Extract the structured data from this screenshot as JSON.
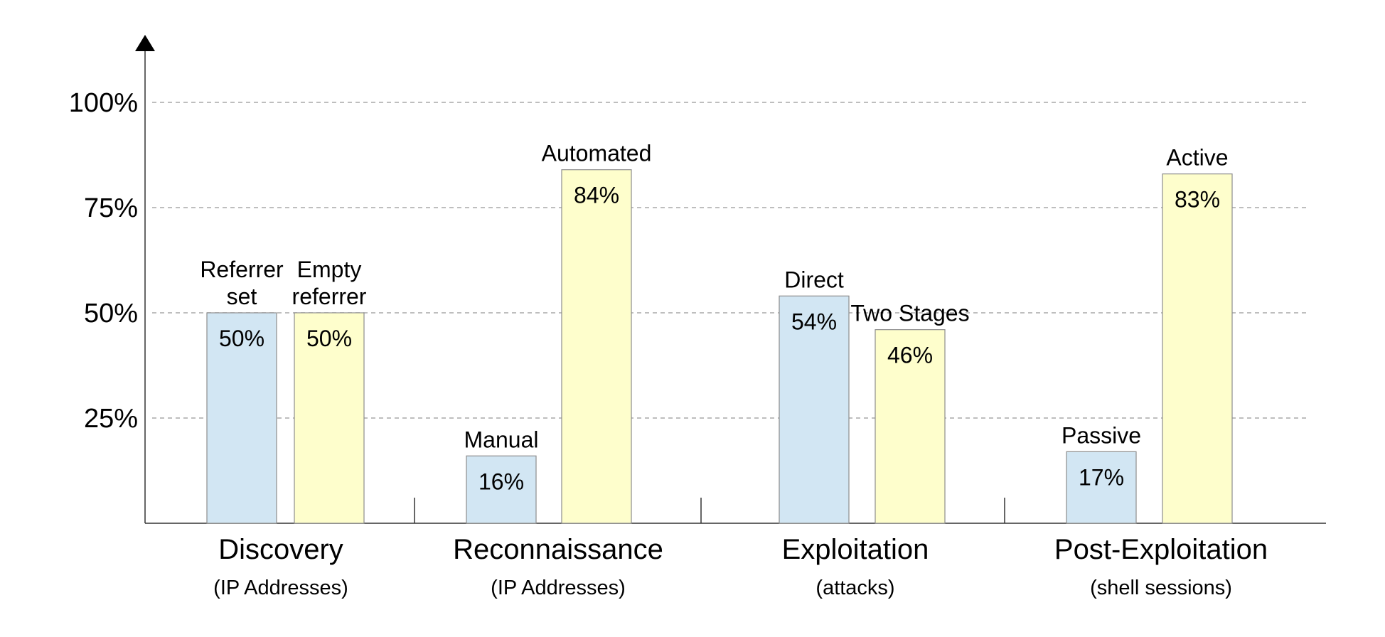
{
  "chart_data": {
    "type": "bar",
    "y_axis": {
      "ticks": [
        25,
        50,
        75,
        100
      ],
      "tick_labels": [
        "25%",
        "50%",
        "75%",
        "100%"
      ],
      "ylim": [
        0,
        100
      ],
      "grid": true
    },
    "colors": {
      "first_bar": "#d2e6f3",
      "second_bar": "#fefecc",
      "bar_stroke": "#8c8c8c",
      "gridline": "#a8a8a8",
      "axis": "#333333"
    },
    "groups": [
      {
        "name": "Discovery",
        "subtitle": "(IP Addresses)",
        "bars": [
          {
            "label": [
              "Referrer",
              "set"
            ],
            "value": 50,
            "value_label": "50%"
          },
          {
            "label": [
              "Empty",
              "referrer"
            ],
            "value": 50,
            "value_label": "50%"
          }
        ]
      },
      {
        "name": "Reconnaissance",
        "subtitle": "(IP Addresses)",
        "bars": [
          {
            "label": [
              "Manual"
            ],
            "value": 16,
            "value_label": "16%"
          },
          {
            "label": [
              "Automated"
            ],
            "value": 84,
            "value_label": "84%"
          }
        ]
      },
      {
        "name": "Exploitation",
        "subtitle": "(attacks)",
        "bars": [
          {
            "label": [
              "Direct"
            ],
            "value": 54,
            "value_label": "54%"
          },
          {
            "label": [
              "Two Stages"
            ],
            "value": 46,
            "value_label": "46%"
          }
        ]
      },
      {
        "name": "Post-Exploitation",
        "subtitle": "(shell sessions)",
        "bars": [
          {
            "label": [
              "Passive"
            ],
            "value": 17,
            "value_label": "17%"
          },
          {
            "label": [
              "Active"
            ],
            "value": 83,
            "value_label": "83%"
          }
        ]
      }
    ]
  }
}
